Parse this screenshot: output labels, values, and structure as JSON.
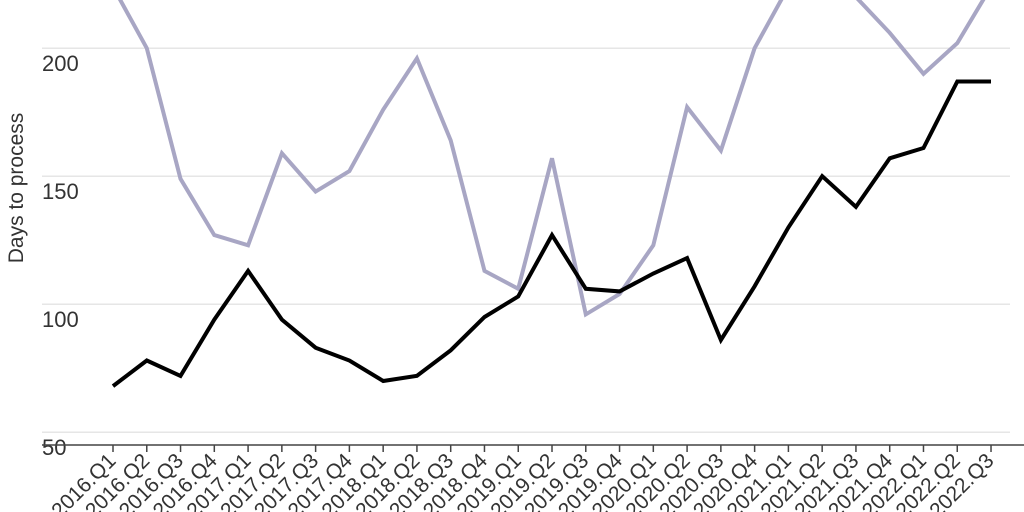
{
  "chart_data": {
    "type": "line",
    "title": "",
    "xlabel": "",
    "ylabel": "Days to process",
    "ylim": [
      45,
      218
    ],
    "yticks": [
      50,
      100,
      150,
      200
    ],
    "grid": true,
    "categories": [
      "2016.Q1",
      "2016.Q2",
      "2016.Q3",
      "2016.Q4",
      "2017.Q1",
      "2017.Q2",
      "2017.Q3",
      "2017.Q4",
      "2018.Q1",
      "2018.Q2",
      "2018.Q3",
      "2018.Q4",
      "2019.Q1",
      "2019.Q2",
      "2019.Q3",
      "2019.Q4",
      "2020.Q1",
      "2020.Q2",
      "2020.Q3",
      "2020.Q4",
      "2021.Q1",
      "2021.Q2",
      "2021.Q3",
      "2021.Q4",
      "2022.Q1",
      "2022.Q2",
      "2022.Q3"
    ],
    "series": [
      {
        "color": "#a8a6c4",
        "values": [
          224,
          200,
          149,
          127,
          123,
          159,
          144,
          152,
          176,
          196,
          164,
          113,
          106,
          157,
          96,
          104,
          123,
          177,
          160,
          200,
          224,
          235,
          220,
          206,
          190,
          202,
          224
        ]
      },
      {
        "color": "#000000",
        "values": [
          68,
          78,
          72,
          94,
          113,
          94,
          83,
          78,
          70,
          72,
          82,
          95,
          103,
          127,
          106,
          105,
          112,
          118,
          86,
          107,
          130,
          150,
          138,
          157,
          161,
          187,
          187
        ]
      }
    ]
  }
}
